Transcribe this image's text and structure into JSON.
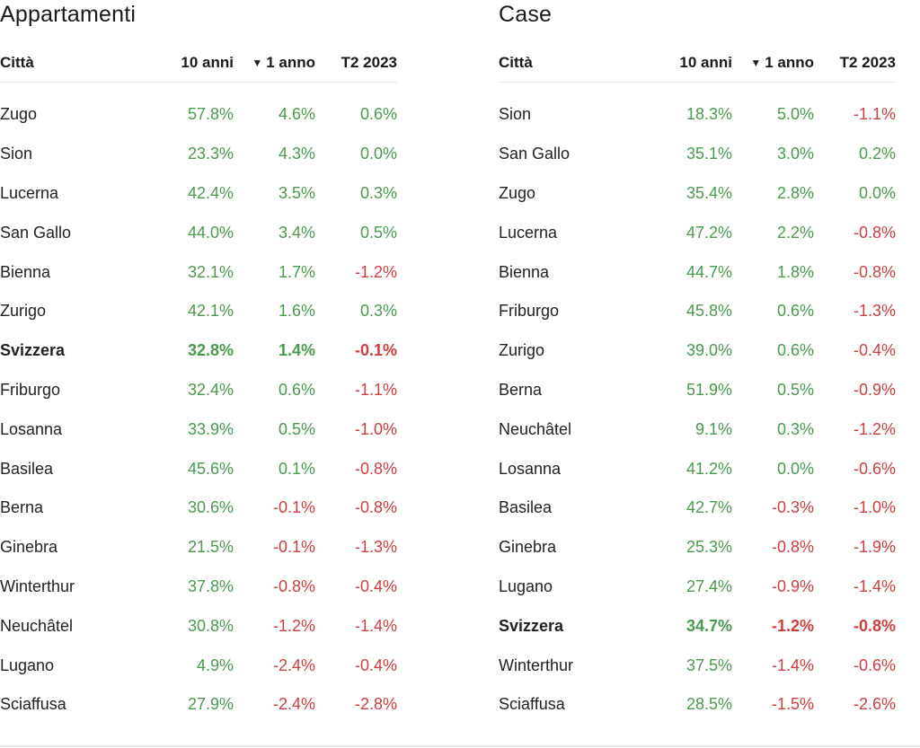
{
  "chart_data": [
    {
      "type": "table",
      "title": "Appartamenti",
      "columns": [
        "Città",
        "10 anni",
        "1 anno",
        "T2 2023"
      ],
      "sorted_column": "1 anno",
      "sort_icon": "triangle-down-icon",
      "colors": {
        "positive": "#4a9a4e",
        "negative": "#cc3f3f"
      },
      "rows": [
        {
          "city": "Zugo",
          "ten": "57.8%",
          "one": "4.6%",
          "q2": "0.6%"
        },
        {
          "city": "Sion",
          "ten": "23.3%",
          "one": "4.3%",
          "q2": "0.0%"
        },
        {
          "city": "Lucerna",
          "ten": "42.4%",
          "one": "3.5%",
          "q2": "0.3%"
        },
        {
          "city": "San Gallo",
          "ten": "44.0%",
          "one": "3.4%",
          "q2": "0.5%"
        },
        {
          "city": "Bienna",
          "ten": "32.1%",
          "one": "1.7%",
          "q2": "-1.2%"
        },
        {
          "city": "Zurigo",
          "ten": "42.1%",
          "one": "1.6%",
          "q2": "0.3%"
        },
        {
          "city": "Svizzera",
          "ten": "32.8%",
          "one": "1.4%",
          "q2": "-0.1%",
          "bold": true
        },
        {
          "city": "Friburgo",
          "ten": "32.4%",
          "one": "0.6%",
          "q2": "-1.1%"
        },
        {
          "city": "Losanna",
          "ten": "33.9%",
          "one": "0.5%",
          "q2": "-1.0%"
        },
        {
          "city": "Basilea",
          "ten": "45.6%",
          "one": "0.1%",
          "q2": "-0.8%"
        },
        {
          "city": "Berna",
          "ten": "30.6%",
          "one": "-0.1%",
          "q2": "-0.8%"
        },
        {
          "city": "Ginebra",
          "ten": "21.5%",
          "one": "-0.1%",
          "q2": "-1.3%"
        },
        {
          "city": "Winterthur",
          "ten": "37.8%",
          "one": "-0.8%",
          "q2": "-0.4%"
        },
        {
          "city": "Neuchâtel",
          "ten": "30.8%",
          "one": "-1.2%",
          "q2": "-1.4%"
        },
        {
          "city": "Lugano",
          "ten": "4.9%",
          "one": "-2.4%",
          "q2": "-0.4%"
        },
        {
          "city": "Sciaffusa",
          "ten": "27.9%",
          "one": "-2.4%",
          "q2": "-2.8%"
        }
      ]
    },
    {
      "type": "table",
      "title": "Case",
      "columns": [
        "Città",
        "10 anni",
        "1 anno",
        "T2 2023"
      ],
      "sorted_column": "1 anno",
      "sort_icon": "triangle-down-icon",
      "colors": {
        "positive": "#4a9a4e",
        "negative": "#cc3f3f"
      },
      "rows": [
        {
          "city": "Sion",
          "ten": "18.3%",
          "one": "5.0%",
          "q2": "-1.1%"
        },
        {
          "city": "San Gallo",
          "ten": "35.1%",
          "one": "3.0%",
          "q2": "0.2%"
        },
        {
          "city": "Zugo",
          "ten": "35.4%",
          "one": "2.8%",
          "q2": "0.0%"
        },
        {
          "city": "Lucerna",
          "ten": "47.2%",
          "one": "2.2%",
          "q2": "-0.8%"
        },
        {
          "city": "Bienna",
          "ten": "44.7%",
          "one": "1.8%",
          "q2": "-0.8%"
        },
        {
          "city": "Friburgo",
          "ten": "45.8%",
          "one": "0.6%",
          "q2": "-1.3%"
        },
        {
          "city": "Zurigo",
          "ten": "39.0%",
          "one": "0.6%",
          "q2": "-0.4%"
        },
        {
          "city": "Berna",
          "ten": "51.9%",
          "one": "0.5%",
          "q2": "-0.9%"
        },
        {
          "city": "Neuchâtel",
          "ten": "9.1%",
          "one": "0.3%",
          "q2": "-1.2%"
        },
        {
          "city": "Losanna",
          "ten": "41.2%",
          "one": "0.0%",
          "q2": "-0.6%"
        },
        {
          "city": "Basilea",
          "ten": "42.7%",
          "one": "-0.3%",
          "q2": "-1.0%"
        },
        {
          "city": "Ginebra",
          "ten": "25.3%",
          "one": "-0.8%",
          "q2": "-1.9%"
        },
        {
          "city": "Lugano",
          "ten": "27.4%",
          "one": "-0.9%",
          "q2": "-1.4%"
        },
        {
          "city": "Svizzera",
          "ten": "34.7%",
          "one": "-1.2%",
          "q2": "-0.8%",
          "bold": true
        },
        {
          "city": "Winterthur",
          "ten": "37.5%",
          "one": "-1.4%",
          "q2": "-0.6%"
        },
        {
          "city": "Sciaffusa",
          "ten": "28.5%",
          "one": "-1.5%",
          "q2": "-2.6%"
        }
      ]
    }
  ]
}
